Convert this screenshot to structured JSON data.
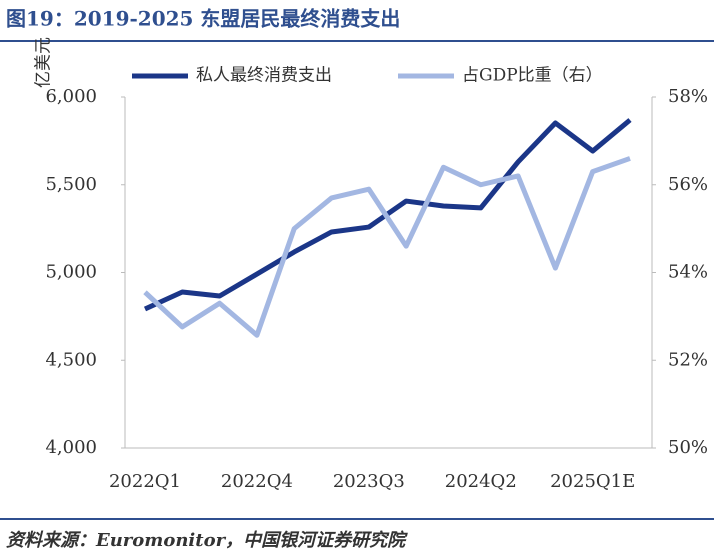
{
  "chart_data": {
    "type": "line",
    "title": "图19：2019-2025 东盟居民最终消费支出",
    "y_label": "亿美元",
    "source": "资料来源：Euromonitor，中国银河证券研究院",
    "categories": [
      "2022Q1",
      null,
      null,
      "2022Q4",
      null,
      null,
      "2023Q3",
      null,
      null,
      "2024Q2",
      null,
      null,
      "2025Q1E",
      null
    ],
    "series": [
      {
        "name": "私人最终消费支出",
        "color": "#1b3688",
        "values": [
          4792,
          4889,
          4866,
          4991,
          5117,
          5231,
          5259,
          5407,
          5379,
          5368,
          5630,
          5852,
          5692,
          5869
        ]
      },
      {
        "name": "占GDP比重（右）",
        "color": "#a3b7e2",
        "axis": "y2",
        "values": [
          53.55,
          52.76,
          53.3,
          52.57,
          55.0,
          55.7,
          55.9,
          54.6,
          56.4,
          56.0,
          56.2,
          54.1,
          56.3,
          56.6
        ]
      }
    ],
    "ylim": [
      4000,
      6000
    ],
    "yticks": [
      {
        "value": 4000,
        "label": "4,000"
      },
      {
        "value": 4500,
        "label": "4,500"
      },
      {
        "value": 5000,
        "label": "5,000"
      },
      {
        "value": 5500,
        "label": "5,500"
      },
      {
        "value": 6000,
        "label": "6,000"
      }
    ],
    "y2lim": [
      50,
      58
    ],
    "y2ticks": [
      {
        "value": 50,
        "label": "50%"
      },
      {
        "value": 52,
        "label": "52%"
      },
      {
        "value": 54,
        "label": "54%"
      },
      {
        "value": 56,
        "label": "56%"
      },
      {
        "value": 58,
        "label": "58%"
      }
    ],
    "legend": "top"
  }
}
